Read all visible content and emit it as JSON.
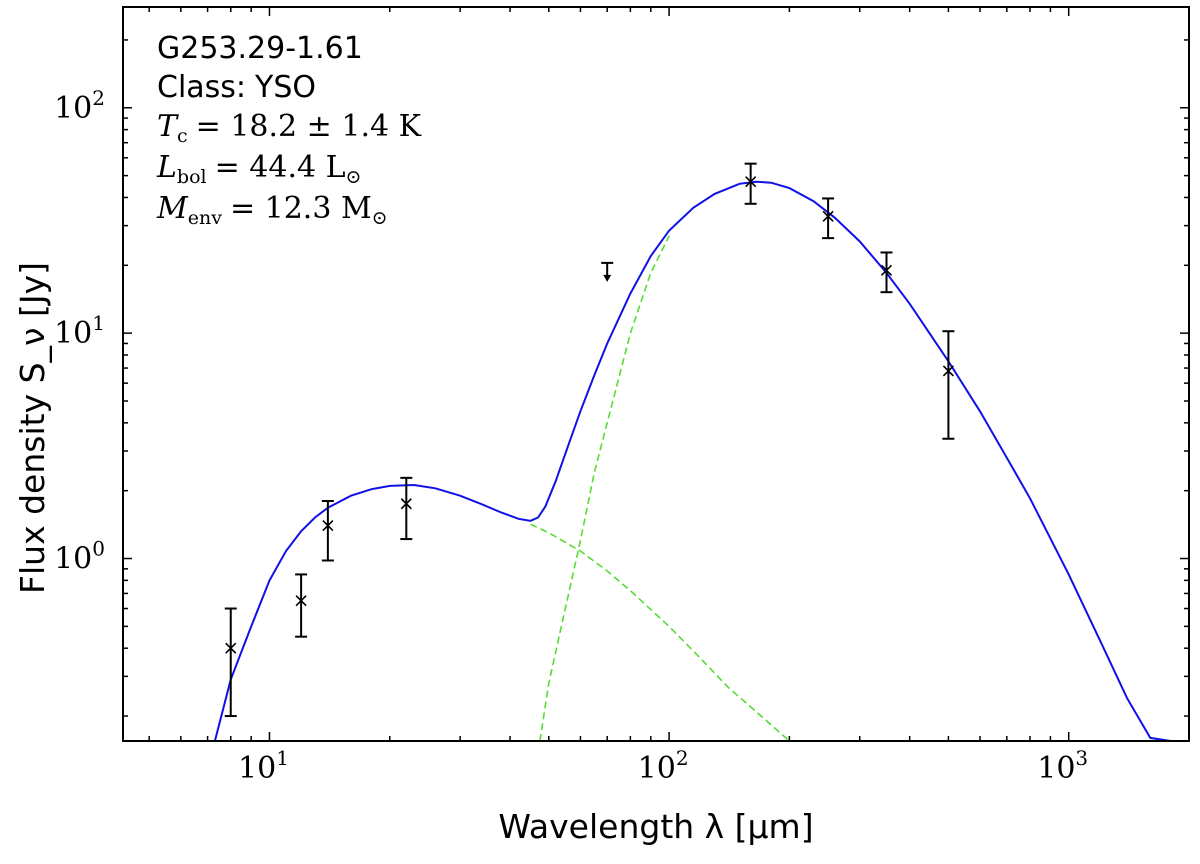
{
  "chart_data": {
    "type": "scatter",
    "xlabel": "Wavelength λ [μm]",
    "ylabel": "Flux density S_ν [Jy]",
    "x_scale": "log",
    "y_scale": "log",
    "xlim": [
      4.3,
      2000
    ],
    "ylim": [
      0.155,
      280
    ],
    "x_ticks": [
      {
        "value": 10,
        "base": "10",
        "exp": "1"
      },
      {
        "value": 100,
        "base": "10",
        "exp": "2"
      },
      {
        "value": 1000,
        "base": "10",
        "exp": "3"
      }
    ],
    "y_ticks": [
      {
        "value": 1,
        "base": "10",
        "exp": "0"
      },
      {
        "value": 10,
        "base": "10",
        "exp": "1"
      },
      {
        "value": 100,
        "base": "10",
        "exp": "2"
      }
    ],
    "grid": false,
    "annotations": {
      "source": "G253.29-1.61",
      "class_prefix": "Class:",
      "class_value": "YSO",
      "tc": {
        "symbol": "T",
        "sub": "c",
        "value": "= 18.2 ± 1.4 K"
      },
      "lbol": {
        "symbol": "L",
        "sub": "bol",
        "value": "= 44.4 L",
        "unit_sub": "⊙"
      },
      "menv": {
        "symbol": "M",
        "sub": "env",
        "value": "= 12.3 M",
        "unit_sub": "⊙"
      }
    },
    "points": [
      {
        "x": 8,
        "y": 0.4,
        "ylo": 0.2,
        "yhi": 0.6
      },
      {
        "x": 12,
        "y": 0.65,
        "ylo": 0.45,
        "yhi": 0.85
      },
      {
        "x": 14,
        "y": 1.4,
        "ylo": 0.98,
        "yhi": 1.8
      },
      {
        "x": 22,
        "y": 1.75,
        "ylo": 1.22,
        "yhi": 2.28
      },
      {
        "x": 160,
        "y": 47,
        "ylo": 37.5,
        "yhi": 56.5
      },
      {
        "x": 250,
        "y": 33,
        "ylo": 26.4,
        "yhi": 39.6
      },
      {
        "x": 350,
        "y": 19,
        "ylo": 15.2,
        "yhi": 22.8
      },
      {
        "x": 500,
        "y": 6.8,
        "ylo": 3.4,
        "yhi": 10.2
      }
    ],
    "upper_limits": [
      {
        "x": 70,
        "y": 20.5
      }
    ],
    "series": [
      {
        "role": "total-fit",
        "color": "#1010e8",
        "style": "solid",
        "x": [
          7.3,
          8,
          9,
          10,
          11,
          12,
          13,
          14,
          16,
          18,
          20,
          23,
          26,
          30,
          34,
          38,
          42,
          45,
          47,
          49,
          52,
          56,
          60,
          65,
          70,
          80,
          90,
          100,
          115,
          130,
          150,
          165,
          180,
          200,
          230,
          260,
          300,
          350,
          400,
          500,
          600,
          700,
          800,
          1000,
          1200,
          1400,
          1600,
          1800
        ],
        "y": [
          0.155,
          0.29,
          0.5,
          0.8,
          1.08,
          1.32,
          1.52,
          1.68,
          1.9,
          2.03,
          2.1,
          2.12,
          2.05,
          1.9,
          1.74,
          1.6,
          1.5,
          1.47,
          1.52,
          1.7,
          2.2,
          3.2,
          4.5,
          6.5,
          9.0,
          15.0,
          22.0,
          28.5,
          36.0,
          41.5,
          46.0,
          47.0,
          46.5,
          44.0,
          38.5,
          32.5,
          25.5,
          18.5,
          13.5,
          7.5,
          4.5,
          2.8,
          1.85,
          0.85,
          0.43,
          0.24,
          0.16,
          0.155
        ]
      },
      {
        "role": "warm-component",
        "color": "#55dd33",
        "style": "dashed",
        "x": [
          45,
          50,
          60,
          70,
          80,
          100,
          120,
          140,
          170,
          200
        ],
        "y": [
          1.42,
          1.3,
          1.08,
          0.88,
          0.72,
          0.5,
          0.36,
          0.27,
          0.2,
          0.155
        ]
      },
      {
        "role": "cold-component",
        "color": "#55dd33",
        "style": "dashed",
        "x": [
          47.5,
          50,
          55,
          60,
          65,
          70,
          80,
          90,
          100
        ],
        "y": [
          0.155,
          0.28,
          0.6,
          1.2,
          2.4,
          4.0,
          10.0,
          18.5,
          27.0
        ]
      }
    ]
  }
}
